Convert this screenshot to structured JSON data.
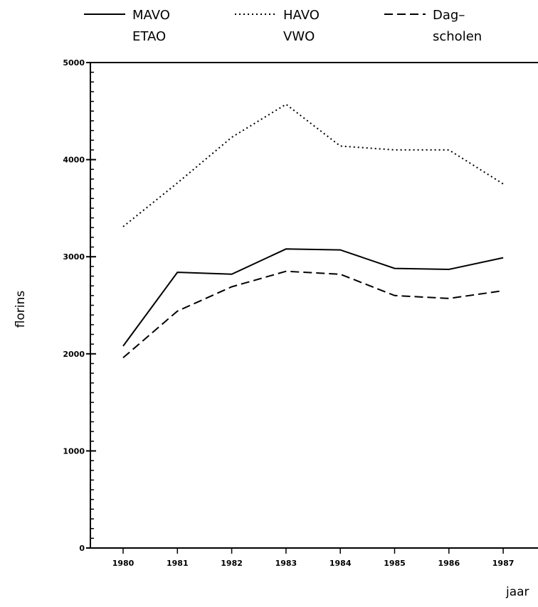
{
  "chart_data": {
    "type": "line",
    "title": "",
    "xlabel": "jaar",
    "ylabel": "florins",
    "x": [
      "1980",
      "1981",
      "1982",
      "1983",
      "1984",
      "1985",
      "1986",
      "1987"
    ],
    "ylim": [
      0,
      5000
    ],
    "yticks": [
      "0",
      "1000",
      "2000",
      "3000",
      "4000",
      "5000"
    ],
    "grid": false,
    "legend_position": "top",
    "series": [
      {
        "name": "MAVO ETAO",
        "legend_lines": [
          "MAVO",
          "ETAO"
        ],
        "style": "solid",
        "values": [
          2080,
          2840,
          2820,
          3080,
          3070,
          2880,
          2870,
          2990
        ]
      },
      {
        "name": "HAVO VWO",
        "legend_lines": [
          "HAVO",
          "VWO"
        ],
        "style": "dotted",
        "values": [
          3310,
          3760,
          4230,
          4570,
          4140,
          4100,
          4100,
          3750
        ]
      },
      {
        "name": "Dag-scholen",
        "legend_lines": [
          "Dag–",
          "scholen"
        ],
        "style": "dashed",
        "values": [
          1960,
          2440,
          2690,
          2850,
          2820,
          2600,
          2570,
          2650
        ]
      }
    ]
  }
}
